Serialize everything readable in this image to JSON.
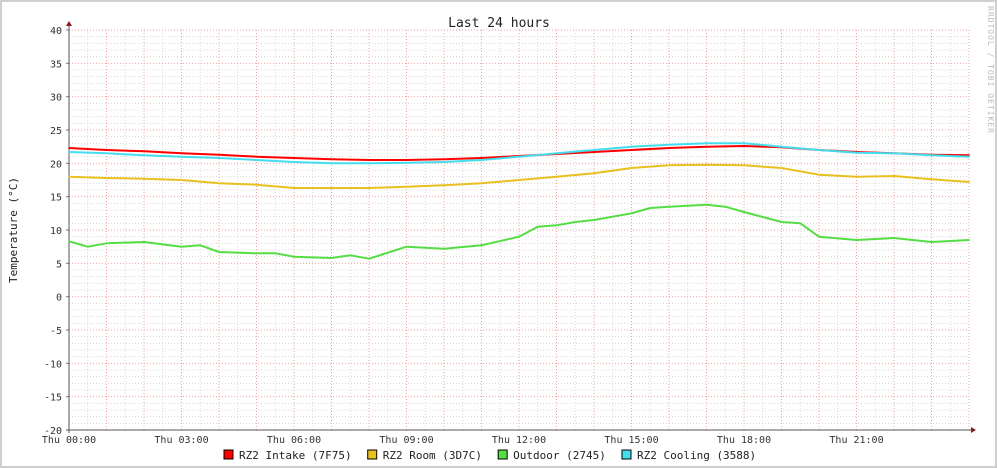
{
  "chart_data": {
    "type": "line",
    "title": "Last 24 hours",
    "ylabel": "Temperature (°C)",
    "xlabel": "",
    "watermark": "RRDTOOL / TOBI OETIKER",
    "ylim": [
      -20,
      40
    ],
    "xlim_hours": [
      0,
      24
    ],
    "y_ticks": [
      40,
      35,
      30,
      25,
      20,
      15,
      10,
      5,
      0,
      -5,
      -10,
      -15,
      -20
    ],
    "x_ticks": [
      {
        "hour": 0,
        "label": "Thu 00:00"
      },
      {
        "hour": 3,
        "label": "Thu 03:00"
      },
      {
        "hour": 6,
        "label": "Thu 06:00"
      },
      {
        "hour": 9,
        "label": "Thu 09:00"
      },
      {
        "hour": 12,
        "label": "Thu 12:00"
      },
      {
        "hour": 15,
        "label": "Thu 15:00"
      },
      {
        "hour": 18,
        "label": "Thu 18:00"
      },
      {
        "hour": 21,
        "label": "Thu 21:00"
      }
    ],
    "grid": true,
    "legend_position": "bottom",
    "series": [
      {
        "name": "RZ2 Intake (7F75)",
        "color": "#ff0000",
        "x": [
          0,
          1,
          2,
          3,
          4,
          5,
          6,
          7,
          8,
          9,
          10,
          11,
          12,
          13,
          14,
          15,
          16,
          17,
          18,
          19,
          20,
          21,
          22,
          23,
          24
        ],
        "y": [
          22.3,
          22,
          21.8,
          21.5,
          21.3,
          21,
          20.8,
          20.6,
          20.5,
          20.5,
          20.6,
          20.8,
          21.1,
          21.4,
          21.7,
          22,
          22.3,
          22.5,
          22.6,
          22.4,
          22,
          21.7,
          21.5,
          21.3,
          21.2
        ]
      },
      {
        "name": "RZ2 Room (3D7C)",
        "color": "#e8c020",
        "x": [
          0,
          1,
          2,
          3,
          4,
          5,
          6,
          7,
          8,
          9,
          10,
          11,
          12,
          13,
          14,
          15,
          16,
          17,
          18,
          19,
          20,
          21,
          22,
          23,
          24
        ],
        "y": [
          18,
          17.8,
          17.7,
          17.5,
          17,
          16.8,
          16.3,
          16.3,
          16.3,
          16.5,
          16.7,
          17,
          17.5,
          18,
          18.5,
          19.3,
          19.7,
          19.8,
          19.7,
          19.3,
          18.3,
          18,
          18.1,
          17.6,
          17.2
        ]
      },
      {
        "name": "Outdoor (2745)",
        "color": "#55dd44",
        "x": [
          0,
          0.5,
          1,
          2,
          3,
          3.5,
          4,
          5,
          5.5,
          6,
          7,
          7.5,
          8,
          9,
          10,
          11,
          12,
          12.5,
          13,
          13.5,
          14,
          15,
          15.5,
          16,
          17,
          17.5,
          18,
          19,
          19.5,
          20,
          21,
          22,
          23,
          24
        ],
        "y": [
          8.3,
          7.5,
          8,
          8.2,
          7.5,
          7.7,
          6.7,
          6.5,
          6.5,
          6,
          5.8,
          6.2,
          5.7,
          7.5,
          7.2,
          7.7,
          9,
          10.5,
          10.7,
          11.2,
          11.5,
          12.5,
          13.3,
          13.5,
          13.8,
          13.5,
          12.7,
          11.2,
          11,
          9,
          8.5,
          8.8,
          8.2,
          8.5
        ]
      },
      {
        "name": "RZ2 Cooling (3588)",
        "color": "#44ddee",
        "x": [
          0,
          1,
          2,
          3,
          4,
          5,
          6,
          7,
          8,
          9,
          10,
          11,
          12,
          13,
          14,
          15,
          16,
          17,
          18,
          19,
          20,
          21,
          22,
          23,
          24
        ],
        "y": [
          21.7,
          21.5,
          21.2,
          21,
          20.8,
          20.5,
          20.2,
          20,
          20,
          20.1,
          20.2,
          20.5,
          21,
          21.5,
          22,
          22.5,
          22.8,
          23,
          23,
          22.5,
          22,
          21.6,
          21.5,
          21.2,
          21
        ]
      }
    ]
  }
}
